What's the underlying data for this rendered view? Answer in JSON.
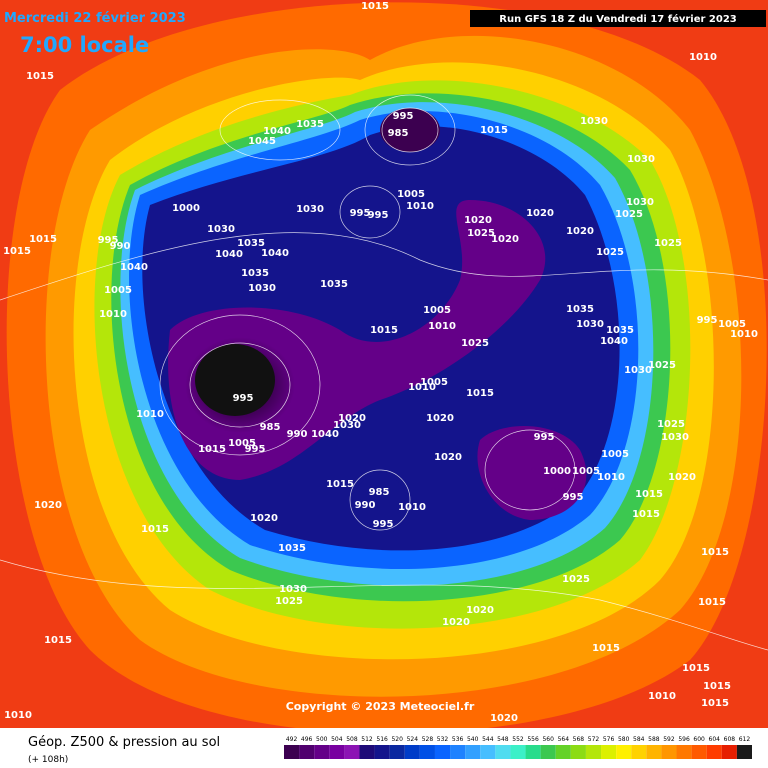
{
  "header": {
    "date": "Mercredi 22 février 2023",
    "time": "7:00 locale",
    "run": "Run GFS 18 Z du Vendredi 17 février 2023"
  },
  "copyright": "Copyright © 2023 Meteociel.fr",
  "legend": {
    "title": "Géop. Z500 & pression au sol",
    "subtitle": "(+ 108h)",
    "scale_values": [
      492,
      496,
      500,
      504,
      508,
      512,
      516,
      520,
      524,
      528,
      532,
      536,
      540,
      544,
      548,
      552,
      556,
      560,
      564,
      568,
      572,
      576,
      580,
      584,
      588,
      592,
      596,
      600,
      604,
      608,
      612
    ],
    "scale_colors": [
      "#3c0050",
      "#50006e",
      "#640088",
      "#7800a0",
      "#8c14b4",
      "#1e0a78",
      "#14148c",
      "#0a28a0",
      "#003cc8",
      "#0050e6",
      "#0a64ff",
      "#1e82ff",
      "#32a0ff",
      "#46beff",
      "#50dcf0",
      "#3cf0c8",
      "#28dc8c",
      "#3cc850",
      "#64d228",
      "#8cdc14",
      "#b4e60a",
      "#dcf000",
      "#fff000",
      "#ffd200",
      "#ffb400",
      "#ff9600",
      "#ff7800",
      "#ff5a00",
      "#ff3c00",
      "#e61e00",
      "#1a1a1a"
    ]
  },
  "isobar_labels": [
    1015,
    1015,
    1040,
    1035,
    1045,
    995,
    985,
    1015,
    1030,
    1030,
    1010,
    1030,
    1025,
    1020,
    1020,
    1025,
    1020,
    1020,
    1025,
    1025,
    1000,
    1030,
    1035,
    1040,
    1040,
    1035,
    1030,
    1035,
    995,
    995,
    1005,
    1010,
    1030,
    1015,
    1015,
    995,
    990,
    1040,
    1005,
    1010,
    1015,
    1010,
    1005,
    1025,
    1035,
    1030,
    1035,
    1040,
    1030,
    1025,
    995,
    1005,
    1010,
    1010,
    995,
    985,
    990,
    1040,
    1030,
    1020,
    1015,
    1005,
    995,
    1010,
    1005,
    1020,
    1015,
    1020,
    995,
    1000,
    1005,
    1005,
    1010,
    995,
    1030,
    1025,
    1020,
    1015,
    1015,
    1015,
    985,
    990,
    995,
    1010,
    1020,
    1015,
    1020,
    1035,
    1030,
    1025,
    1025,
    1015,
    1015,
    1020,
    1020,
    1015,
    1015,
    1015,
    1010,
    1010,
    1020,
    1015,
    1015
  ]
}
